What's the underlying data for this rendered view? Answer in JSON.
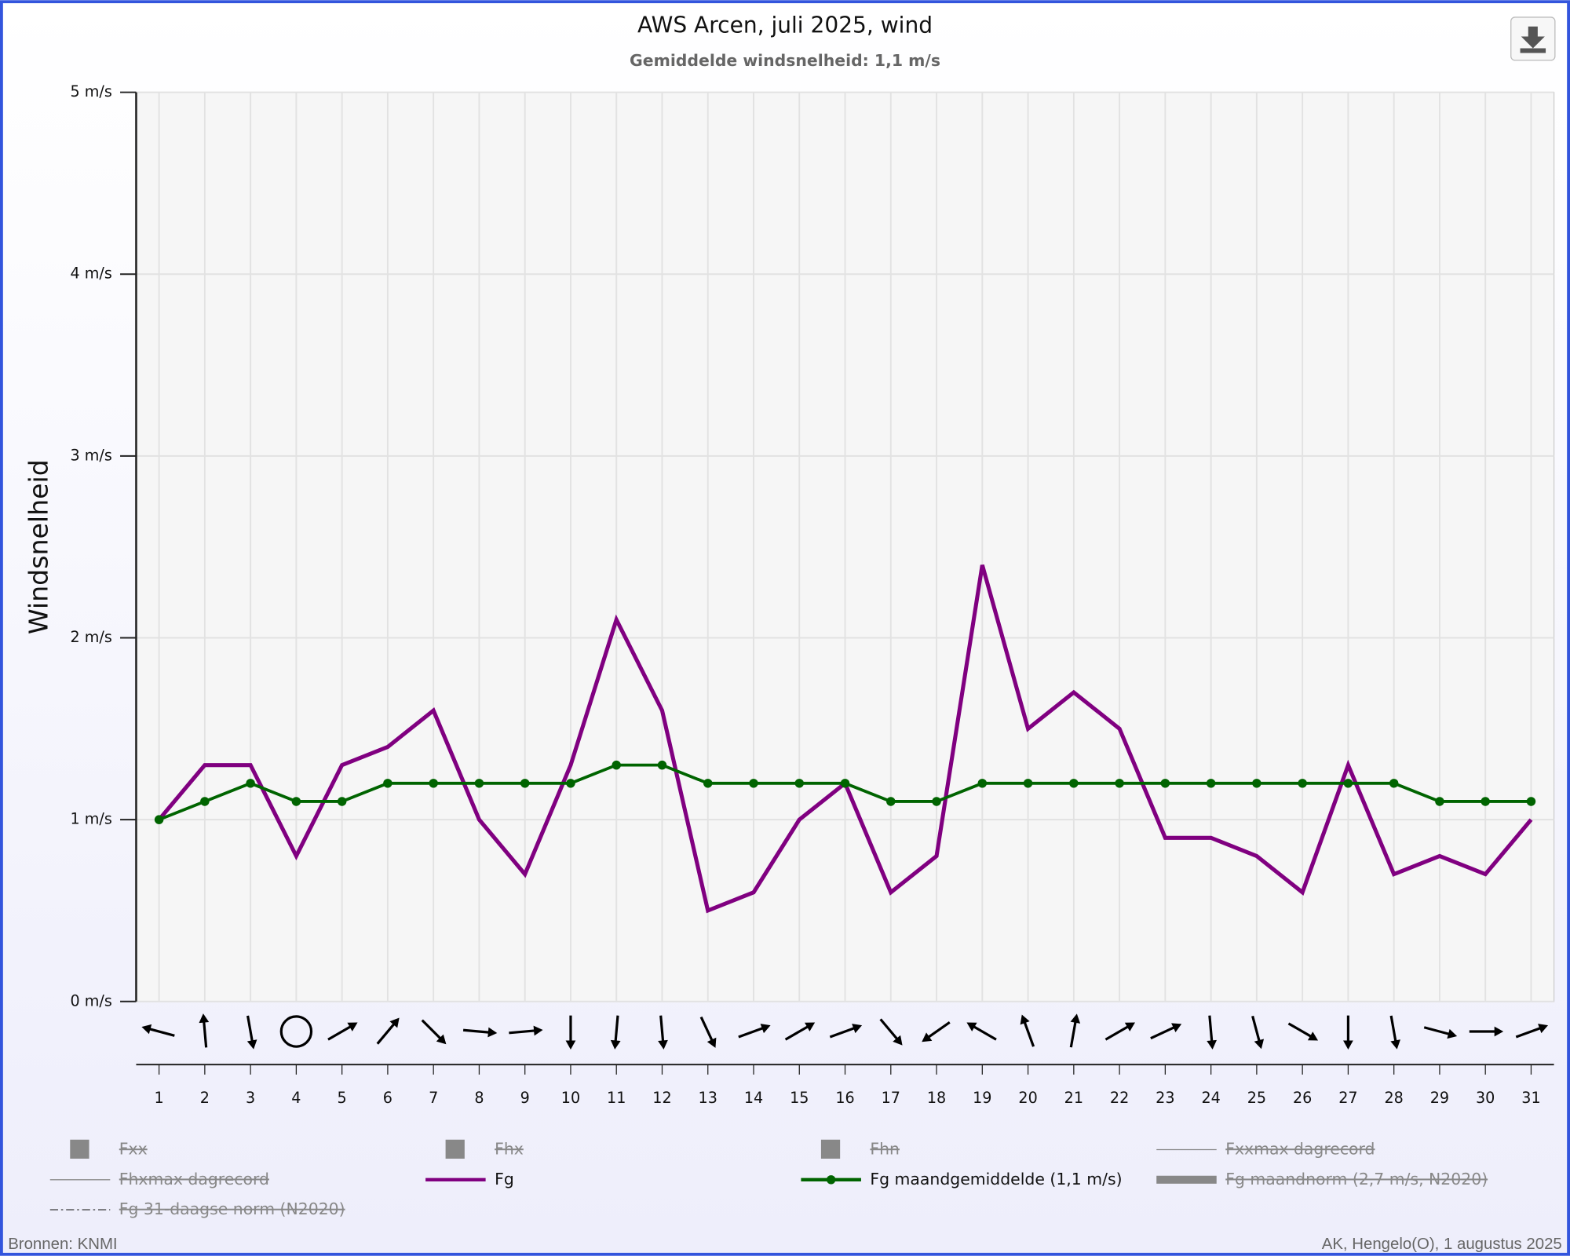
{
  "chart_data": {
    "type": "line",
    "title": "AWS Arcen, juli 2025, wind",
    "subtitle": "Gemiddelde windsnelheid: 1,1 m/s",
    "y_label": "Windsnelheid",
    "x": [
      1,
      2,
      3,
      4,
      5,
      6,
      7,
      8,
      9,
      10,
      11,
      12,
      13,
      14,
      15,
      16,
      17,
      18,
      19,
      20,
      21,
      22,
      23,
      24,
      25,
      26,
      27,
      28,
      29,
      30,
      31
    ],
    "xlim": [
      0.5,
      31.5
    ],
    "xticks": [
      1,
      2,
      3,
      4,
      5,
      6,
      7,
      8,
      9,
      10,
      11,
      12,
      13,
      14,
      15,
      16,
      17,
      18,
      19,
      20,
      21,
      22,
      23,
      24,
      25,
      26,
      27,
      28,
      29,
      30,
      31
    ],
    "ylim": [
      0,
      5
    ],
    "yticks": [
      {
        "value": 0,
        "label": "0 m/s"
      },
      {
        "value": 1,
        "label": "1 m/s"
      },
      {
        "value": 2,
        "label": "2 m/s"
      },
      {
        "value": 3,
        "label": "3 m/s"
      },
      {
        "value": 4,
        "label": "4 m/s"
      },
      {
        "value": 5,
        "label": "5 m/s"
      }
    ],
    "grid": true,
    "wind_direction": [
      285,
      355,
      170,
      null,
      60,
      40,
      135,
      95,
      85,
      180,
      185,
      175,
      155,
      70,
      60,
      70,
      140,
      235,
      300,
      340,
      10,
      60,
      65,
      175,
      165,
      120,
      180,
      170,
      105,
      90,
      70
    ],
    "series": [
      {
        "name": "Fxx",
        "symbol": "square",
        "visible": false
      },
      {
        "name": "Fhx",
        "symbol": "square",
        "visible": false
      },
      {
        "name": "Fhn",
        "symbol": "square",
        "visible": false
      },
      {
        "name": "Fxxmax dagrecord",
        "symbol": "line",
        "visible": false
      },
      {
        "name": "Fhxmax dagrecord",
        "symbol": "line",
        "visible": false
      },
      {
        "name": "Fg",
        "symbol": "line",
        "visible": true,
        "color": "#800080",
        "values": [
          1.0,
          1.3,
          1.3,
          0.8,
          1.3,
          1.4,
          1.6,
          1.0,
          0.7,
          1.3,
          2.1,
          1.6,
          0.5,
          0.6,
          1.0,
          1.2,
          0.6,
          0.8,
          2.4,
          1.5,
          1.7,
          1.5,
          0.9,
          0.9,
          0.8,
          0.6,
          1.3,
          0.7,
          0.8,
          0.7,
          1.0
        ]
      },
      {
        "name": "Fg maandgemiddelde (1,1 m/s)",
        "symbol": "line-marker",
        "visible": true,
        "color": "#006400",
        "values": [
          1.0,
          1.1,
          1.2,
          1.1,
          1.1,
          1.2,
          1.2,
          1.2,
          1.2,
          1.2,
          1.3,
          1.3,
          1.2,
          1.2,
          1.2,
          1.2,
          1.1,
          1.1,
          1.2,
          1.2,
          1.2,
          1.2,
          1.2,
          1.2,
          1.2,
          1.2,
          1.2,
          1.2,
          1.1,
          1.1,
          1.1
        ]
      },
      {
        "name": "Fg maandnorm (2,7 m/s, N2020)",
        "symbol": "thick-line",
        "visible": false
      },
      {
        "name": "Fg 31-daagse norm (N2020)",
        "symbol": "dash-dot",
        "visible": false
      }
    ],
    "source": "Bronnen: KNMI",
    "credit": "AK, Hengelo(O), 1 augustus 2025"
  }
}
